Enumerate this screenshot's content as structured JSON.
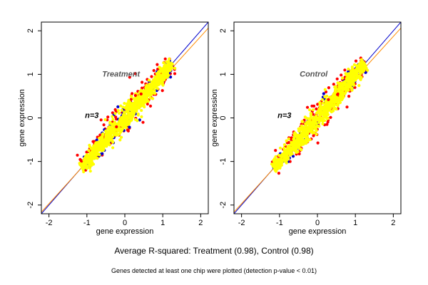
{
  "chart_data": [
    {
      "type": "scatter",
      "title": "Treatment",
      "annotation": "n=3",
      "xlabel": "gene expression",
      "ylabel": "gene expression",
      "xlim": [
        -2.2,
        2.2
      ],
      "ylim": [
        -2.2,
        2.2
      ],
      "xticks": [
        -2,
        -1,
        0,
        1,
        2
      ],
      "yticks": [
        -2,
        -1,
        0,
        1,
        2
      ],
      "reference_lines": [
        {
          "color": "#0000cc",
          "slope": 1.0,
          "intercept": 0.0
        },
        {
          "color": "#ff8c00",
          "slope": 0.96,
          "intercept": -0.05
        }
      ],
      "series_colors": [
        "#ff0000",
        "#0000cc",
        "#ffff00"
      ],
      "cloud_extent_x": [
        -1.15,
        1.25
      ]
    },
    {
      "type": "scatter",
      "title": "Control",
      "annotation": "n=3",
      "xlabel": "gene expression",
      "ylabel": "gene expression",
      "xlim": [
        -2.2,
        2.2
      ],
      "ylim": [
        -2.2,
        2.2
      ],
      "xticks": [
        -2,
        -1,
        0,
        1,
        2
      ],
      "yticks": [
        -2,
        -1,
        0,
        1,
        2
      ],
      "reference_lines": [
        {
          "color": "#0000cc",
          "slope": 1.0,
          "intercept": 0.0
        },
        {
          "color": "#ff8c00",
          "slope": 0.96,
          "intercept": -0.05
        }
      ],
      "series_colors": [
        "#ff0000",
        "#0000cc",
        "#ffff00"
      ],
      "cloud_extent_x": [
        -1.15,
        1.25
      ]
    }
  ],
  "footer": {
    "summary": "Average R-squared: Treatment (0.98), Control (0.98)",
    "note": "Genes detected at least one chip were plotted (detection p-value < 0.01)"
  }
}
